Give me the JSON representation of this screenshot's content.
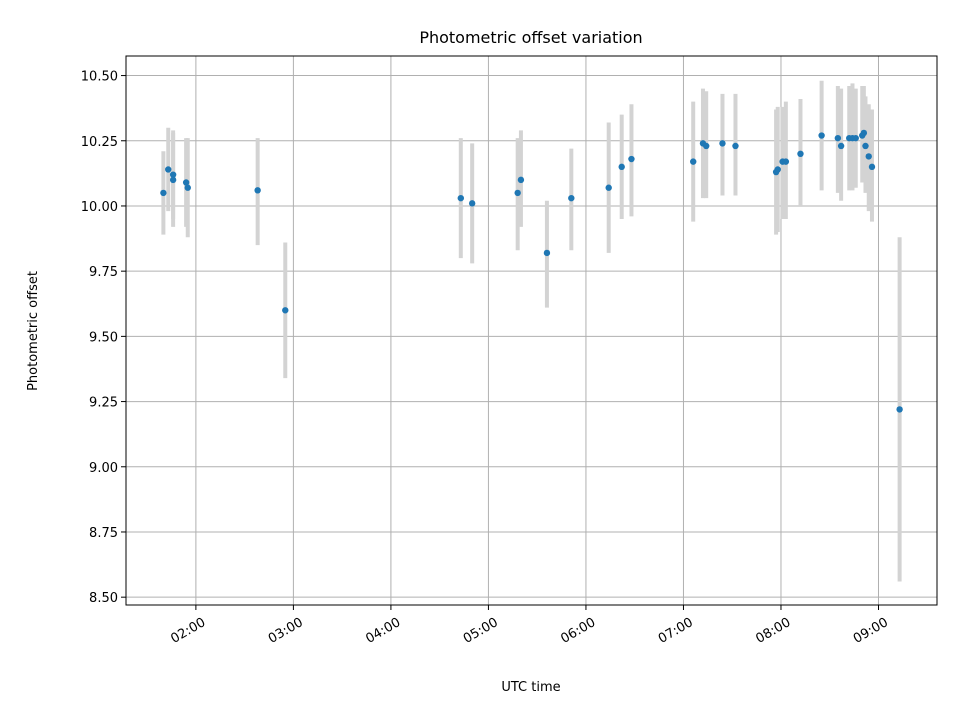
{
  "chart_data": {
    "type": "scatter",
    "title": "Photometric offset variation",
    "xlabel": "UTC time",
    "ylabel": "Photometric offset",
    "x_unit": "HH:MM UTC",
    "xlim": [
      "01:17",
      "09:36"
    ],
    "ylim": [
      8.47,
      10.575
    ],
    "grid": true,
    "x_ticks": [
      "02:00",
      "03:00",
      "04:00",
      "05:00",
      "06:00",
      "07:00",
      "08:00",
      "09:00"
    ],
    "y_ticks": [
      8.5,
      8.75,
      9.0,
      9.25,
      9.5,
      9.75,
      10.0,
      10.25,
      10.5
    ],
    "y_tick_labels": [
      "8.50",
      "8.75",
      "9.00",
      "9.25",
      "9.50",
      "9.75",
      "10.00",
      "10.25",
      "10.50"
    ],
    "marker_color": "#1f77b4",
    "errorbar_color": "#d3d3d3",
    "series": [
      {
        "points": [
          {
            "t": "01:40",
            "y": 10.05,
            "ylo": 9.89,
            "yhi": 10.21
          },
          {
            "t": "01:43",
            "y": 10.14,
            "ylo": 9.98,
            "yhi": 10.3
          },
          {
            "t": "01:46",
            "y": 10.12,
            "ylo": 9.95,
            "yhi": 10.29
          },
          {
            "t": "01:46",
            "y": 10.1,
            "ylo": 9.92,
            "yhi": 10.28
          },
          {
            "t": "01:54",
            "y": 10.09,
            "ylo": 9.92,
            "yhi": 10.26
          },
          {
            "t": "01:55",
            "y": 10.07,
            "ylo": 9.88,
            "yhi": 10.26
          },
          {
            "t": "02:38",
            "y": 10.06,
            "ylo": 9.85,
            "yhi": 10.26
          },
          {
            "t": "02:55",
            "y": 9.6,
            "ylo": 9.34,
            "yhi": 9.86
          },
          {
            "t": "04:43",
            "y": 10.03,
            "ylo": 9.8,
            "yhi": 10.26
          },
          {
            "t": "04:50",
            "y": 10.01,
            "ylo": 9.78,
            "yhi": 10.24
          },
          {
            "t": "05:18",
            "y": 10.05,
            "ylo": 9.83,
            "yhi": 10.26
          },
          {
            "t": "05:20",
            "y": 10.1,
            "ylo": 9.92,
            "yhi": 10.29
          },
          {
            "t": "05:36",
            "y": 9.82,
            "ylo": 9.61,
            "yhi": 10.02
          },
          {
            "t": "05:51",
            "y": 10.03,
            "ylo": 9.83,
            "yhi": 10.22
          },
          {
            "t": "06:14",
            "y": 10.07,
            "ylo": 9.82,
            "yhi": 10.32
          },
          {
            "t": "06:22",
            "y": 10.15,
            "ylo": 9.95,
            "yhi": 10.35
          },
          {
            "t": "06:28",
            "y": 10.18,
            "ylo": 9.96,
            "yhi": 10.39
          },
          {
            "t": "07:06",
            "y": 10.17,
            "ylo": 9.94,
            "yhi": 10.4
          },
          {
            "t": "07:12",
            "y": 10.24,
            "ylo": 10.03,
            "yhi": 10.45
          },
          {
            "t": "07:14",
            "y": 10.23,
            "ylo": 10.03,
            "yhi": 10.44
          },
          {
            "t": "07:24",
            "y": 10.24,
            "ylo": 10.04,
            "yhi": 10.43
          },
          {
            "t": "07:32",
            "y": 10.23,
            "ylo": 10.04,
            "yhi": 10.43
          },
          {
            "t": "07:57",
            "y": 10.13,
            "ylo": 9.89,
            "yhi": 10.37
          },
          {
            "t": "07:58",
            "y": 10.14,
            "ylo": 9.9,
            "yhi": 10.38
          },
          {
            "t": "08:01",
            "y": 10.17,
            "ylo": 9.95,
            "yhi": 10.38
          },
          {
            "t": "08:03",
            "y": 10.17,
            "ylo": 9.95,
            "yhi": 10.4
          },
          {
            "t": "08:12",
            "y": 10.2,
            "ylo": 10.0,
            "yhi": 10.41
          },
          {
            "t": "08:25",
            "y": 10.27,
            "ylo": 10.06,
            "yhi": 10.48
          },
          {
            "t": "08:35",
            "y": 10.26,
            "ylo": 10.05,
            "yhi": 10.46
          },
          {
            "t": "08:37",
            "y": 10.23,
            "ylo": 10.02,
            "yhi": 10.45
          },
          {
            "t": "08:42",
            "y": 10.26,
            "ylo": 10.06,
            "yhi": 10.46
          },
          {
            "t": "08:44",
            "y": 10.26,
            "ylo": 10.06,
            "yhi": 10.47
          },
          {
            "t": "08:46",
            "y": 10.26,
            "ylo": 10.07,
            "yhi": 10.45
          },
          {
            "t": "08:50",
            "y": 10.27,
            "ylo": 10.09,
            "yhi": 10.46
          },
          {
            "t": "08:51",
            "y": 10.28,
            "ylo": 10.09,
            "yhi": 10.46
          },
          {
            "t": "08:52",
            "y": 10.23,
            "ylo": 10.05,
            "yhi": 10.42
          },
          {
            "t": "08:54",
            "y": 10.19,
            "ylo": 9.98,
            "yhi": 10.39
          },
          {
            "t": "08:56",
            "y": 10.15,
            "ylo": 9.94,
            "yhi": 10.37
          },
          {
            "t": "09:13",
            "y": 9.22,
            "ylo": 8.56,
            "yhi": 9.88
          }
        ]
      }
    ]
  }
}
